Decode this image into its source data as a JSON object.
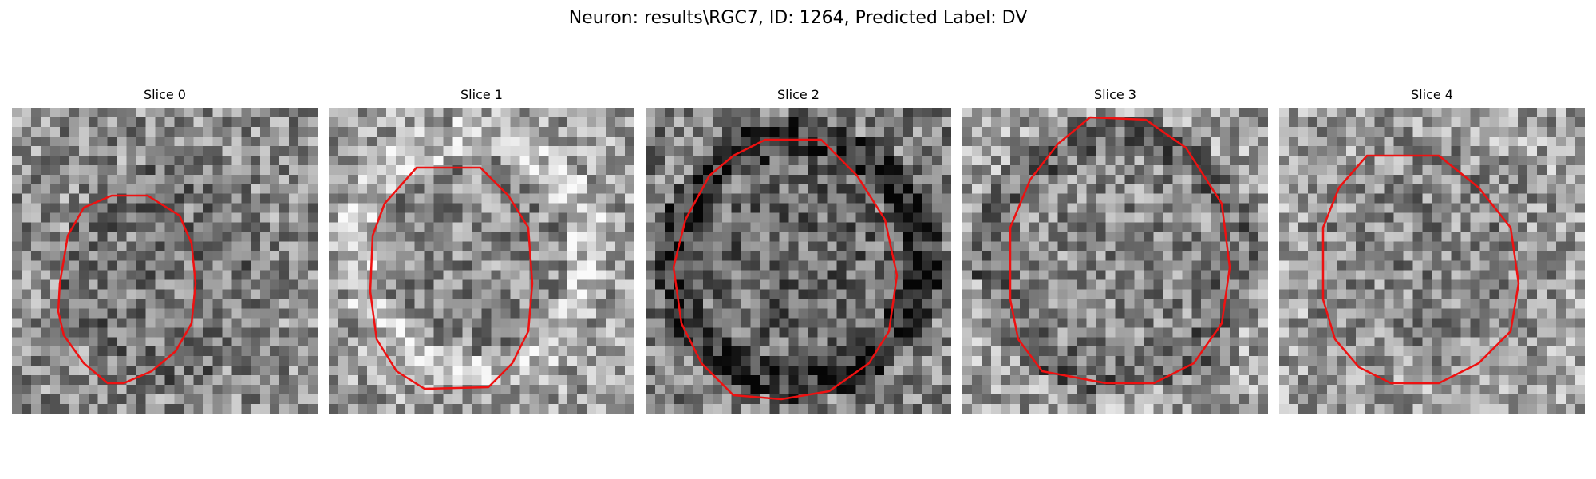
{
  "figure": {
    "title": "Neuron: results\\RGC7, ID: 1264, Predicted Label: DV"
  },
  "contour_color": "#ee1111",
  "slices": [
    {
      "label": "Slice 0"
    },
    {
      "label": "Slice 1"
    },
    {
      "label": "Slice 2"
    },
    {
      "label": "Slice 3"
    },
    {
      "label": "Slice 4"
    }
  ]
}
